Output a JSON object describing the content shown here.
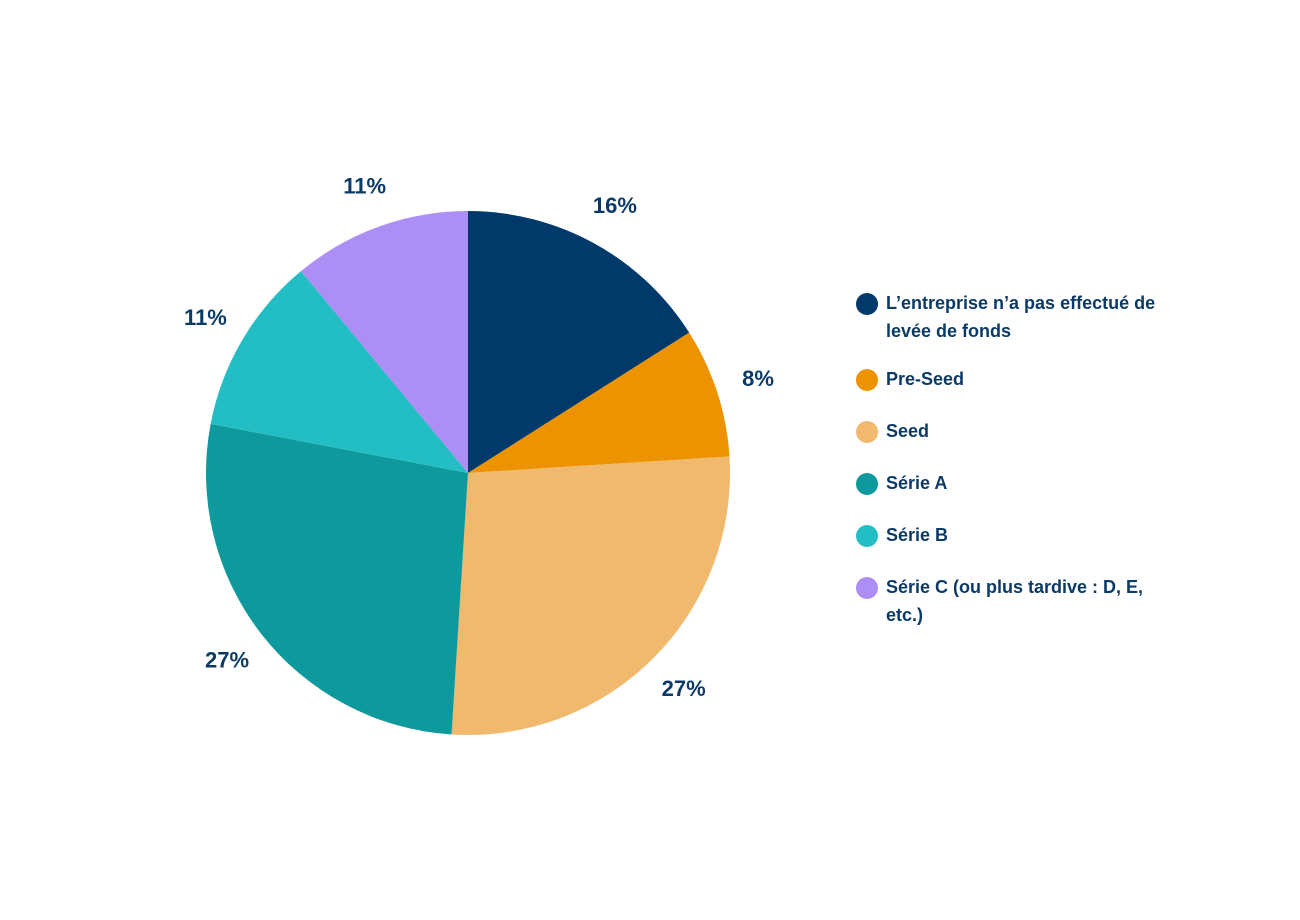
{
  "chart_data": {
    "type": "pie",
    "title": "",
    "slices": [
      {
        "label": "L’entreprise n’a pas effectué de levée de fonds",
        "value": 16,
        "display": "16%",
        "color": "#003a6b"
      },
      {
        "label": "Pre-Seed",
        "value": 8,
        "display": "8%",
        "color": "#ed9300"
      },
      {
        "label": "Seed",
        "value": 27,
        "display": "27%",
        "color": "#f1b96d"
      },
      {
        "label": "Série A",
        "value": 27,
        "display": "27%",
        "color": "#0e9a9c"
      },
      {
        "label": "Série B",
        "value": 11,
        "display": "11%",
        "color": "#22bec3"
      },
      {
        "label": "Série C (ou plus tardive : D, E, etc.)",
        "value": 11,
        "display": "11%",
        "color": "#ad8ef5"
      }
    ],
    "start_angle": "12 o'clock",
    "direction": "clockwise",
    "legend_position": "right"
  },
  "colors": {
    "label_text": "#0b3a66",
    "background": "#ffffff"
  }
}
